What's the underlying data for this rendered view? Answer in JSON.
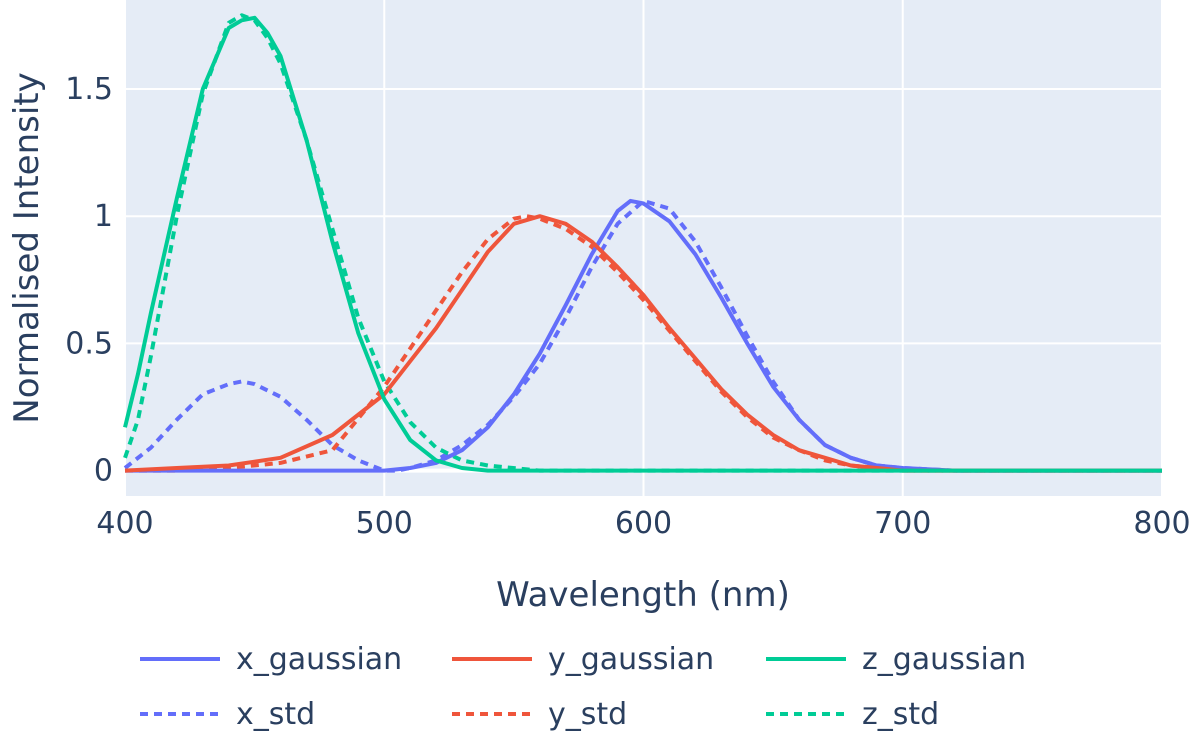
{
  "chart_data": {
    "type": "line",
    "title": "",
    "xlabel": "Wavelength (nm)",
    "ylabel": "Normalised Intensity",
    "xlim": [
      400,
      800
    ],
    "ylim": [
      -0.1,
      1.85
    ],
    "x_ticks": [
      400,
      500,
      600,
      700,
      800
    ],
    "x_tick_labels": [
      "400",
      "500",
      "600",
      "700",
      "800"
    ],
    "y_ticks": [
      0,
      0.5,
      1,
      1.5
    ],
    "y_tick_labels": [
      "0",
      "0.5",
      "1",
      "1.5"
    ],
    "grid": true,
    "plot_bg": "#e5ecf6",
    "legend_position": "bottom",
    "series": [
      {
        "name": "x_gaussian",
        "color": "#636efa",
        "dash": "solid",
        "x": [
          400,
          420,
          440,
          460,
          480,
          500,
          510,
          520,
          530,
          540,
          550,
          560,
          570,
          580,
          590,
          595,
          600,
          610,
          620,
          630,
          640,
          650,
          660,
          670,
          680,
          690,
          700,
          720,
          740,
          760,
          780,
          800
        ],
        "y": [
          0.0,
          0.0,
          0.0,
          0.0,
          0.0,
          0.0,
          0.01,
          0.03,
          0.08,
          0.17,
          0.3,
          0.46,
          0.65,
          0.85,
          1.02,
          1.06,
          1.05,
          0.98,
          0.85,
          0.68,
          0.5,
          0.33,
          0.2,
          0.1,
          0.05,
          0.02,
          0.01,
          0.0,
          0.0,
          0.0,
          0.0,
          0.0
        ]
      },
      {
        "name": "y_gaussian",
        "color": "#ef553b",
        "dash": "solid",
        "x": [
          400,
          420,
          440,
          460,
          480,
          500,
          510,
          520,
          530,
          540,
          550,
          560,
          570,
          580,
          590,
          600,
          610,
          620,
          630,
          640,
          650,
          660,
          670,
          680,
          690,
          700,
          720,
          740,
          760,
          780,
          800
        ],
        "y": [
          0.0,
          0.01,
          0.02,
          0.05,
          0.14,
          0.3,
          0.43,
          0.56,
          0.71,
          0.86,
          0.97,
          1.0,
          0.97,
          0.9,
          0.8,
          0.69,
          0.56,
          0.44,
          0.32,
          0.22,
          0.14,
          0.08,
          0.05,
          0.02,
          0.01,
          0.0,
          0.0,
          0.0,
          0.0,
          0.0,
          0.0
        ]
      },
      {
        "name": "z_gaussian",
        "color": "#00cc96",
        "dash": "solid",
        "x": [
          400,
          405,
          410,
          420,
          430,
          440,
          445,
          450,
          455,
          460,
          470,
          480,
          490,
          500,
          510,
          520,
          530,
          540,
          560,
          600,
          700,
          800
        ],
        "y": [
          0.17,
          0.38,
          0.62,
          1.07,
          1.5,
          1.74,
          1.77,
          1.78,
          1.72,
          1.63,
          1.3,
          0.9,
          0.54,
          0.28,
          0.12,
          0.04,
          0.01,
          0.0,
          0.0,
          0.0,
          0.0,
          0.0
        ]
      },
      {
        "name": "x_std",
        "color": "#636efa",
        "dash": "dot",
        "x": [
          400,
          410,
          420,
          430,
          440,
          445,
          450,
          460,
          470,
          480,
          490,
          500,
          505,
          510,
          520,
          530,
          540,
          550,
          560,
          570,
          580,
          590,
          600,
          610,
          620,
          630,
          640,
          650,
          660,
          670,
          680,
          690,
          700,
          720,
          740,
          760,
          780,
          800
        ],
        "y": [
          0.01,
          0.09,
          0.2,
          0.3,
          0.34,
          0.35,
          0.34,
          0.29,
          0.2,
          0.1,
          0.04,
          0.0,
          0.0,
          0.01,
          0.04,
          0.1,
          0.18,
          0.29,
          0.42,
          0.6,
          0.8,
          0.97,
          1.06,
          1.03,
          0.9,
          0.72,
          0.53,
          0.35,
          0.2,
          0.1,
          0.05,
          0.02,
          0.01,
          0.0,
          0.0,
          0.0,
          0.0,
          0.0
        ]
      },
      {
        "name": "y_std",
        "color": "#ef553b",
        "dash": "dot",
        "x": [
          400,
          420,
          440,
          460,
          480,
          500,
          510,
          520,
          530,
          540,
          550,
          555,
          560,
          570,
          580,
          590,
          600,
          610,
          620,
          630,
          640,
          650,
          660,
          670,
          680,
          690,
          700,
          720,
          740,
          760,
          780,
          800
        ],
        "y": [
          0.0,
          0.0,
          0.01,
          0.03,
          0.08,
          0.33,
          0.48,
          0.63,
          0.78,
          0.91,
          0.99,
          1.0,
          0.99,
          0.95,
          0.88,
          0.78,
          0.67,
          0.55,
          0.43,
          0.31,
          0.21,
          0.13,
          0.08,
          0.04,
          0.02,
          0.01,
          0.0,
          0.0,
          0.0,
          0.0,
          0.0,
          0.0
        ]
      },
      {
        "name": "z_std",
        "color": "#00cc96",
        "dash": "dot",
        "x": [
          400,
          405,
          410,
          420,
          430,
          440,
          445,
          450,
          455,
          460,
          470,
          480,
          490,
          500,
          510,
          520,
          530,
          540,
          560,
          580,
          600,
          700,
          800
        ],
        "y": [
          0.05,
          0.2,
          0.45,
          1.0,
          1.48,
          1.76,
          1.79,
          1.77,
          1.7,
          1.6,
          1.3,
          0.95,
          0.6,
          0.35,
          0.19,
          0.09,
          0.04,
          0.02,
          0.0,
          0.0,
          0.0,
          0.0,
          0.0
        ]
      }
    ]
  }
}
